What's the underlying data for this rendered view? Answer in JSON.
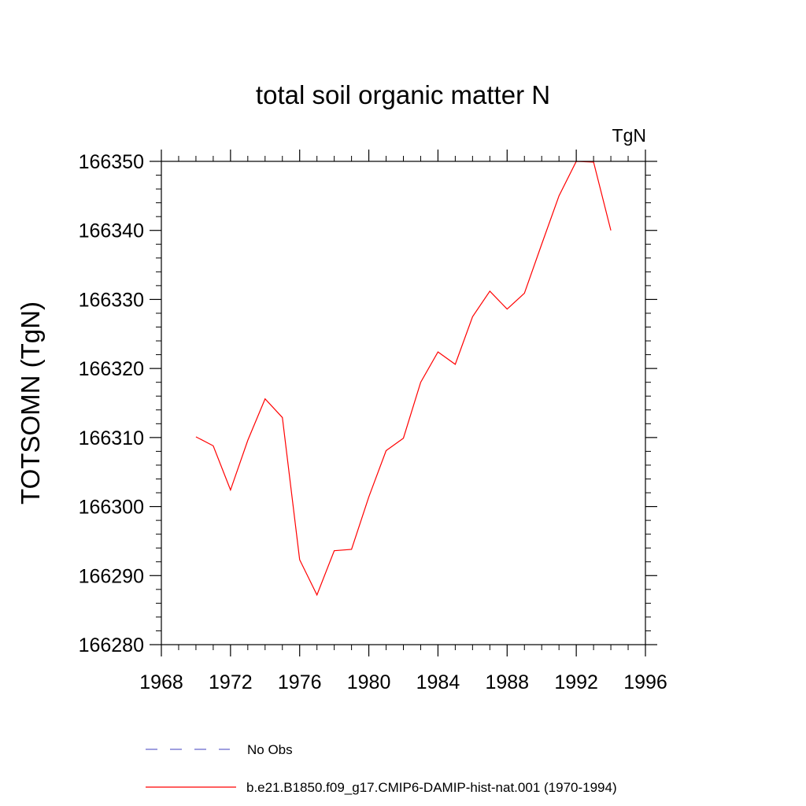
{
  "chart_data": {
    "type": "line",
    "title": "total soil organic matter N",
    "units_label": "TgN",
    "xlabel": "",
    "ylabel": "TOTSOMN  (TgN)",
    "xlim": [
      1968,
      1996
    ],
    "ylim": [
      166280,
      166350
    ],
    "x_ticks": [
      1968,
      1972,
      1976,
      1980,
      1984,
      1988,
      1992,
      1996
    ],
    "y_ticks": [
      166280,
      166290,
      166300,
      166310,
      166320,
      166330,
      166340,
      166350
    ],
    "grid": false,
    "legend_position": "bottom",
    "series": [
      {
        "name": "No Obs",
        "color": "#6666cc",
        "dash": "dashed",
        "x": [],
        "values": []
      },
      {
        "name": "b.e21.B1850.f09_g17.CMIP6-DAMIP-hist-nat.001 (1970-1994)",
        "color": "#ff0000",
        "dash": "solid",
        "x": [
          1970,
          1971,
          1972,
          1973,
          1974,
          1975,
          1976,
          1977,
          1978,
          1979,
          1980,
          1981,
          1982,
          1983,
          1984,
          1985,
          1986,
          1987,
          1988,
          1989,
          1990,
          1991,
          1992,
          1993,
          1994
        ],
        "values": [
          166310.1,
          166308.8,
          166302.4,
          166309.6,
          166315.6,
          166312.9,
          166292.3,
          166287.2,
          166293.6,
          166293.8,
          166301.4,
          166308.1,
          166309.9,
          166318.0,
          166322.4,
          166320.6,
          166327.5,
          166331.2,
          166328.6,
          166330.9,
          166338.0,
          166345.0,
          166350.0,
          166349.9,
          166340.0
        ]
      }
    ]
  }
}
